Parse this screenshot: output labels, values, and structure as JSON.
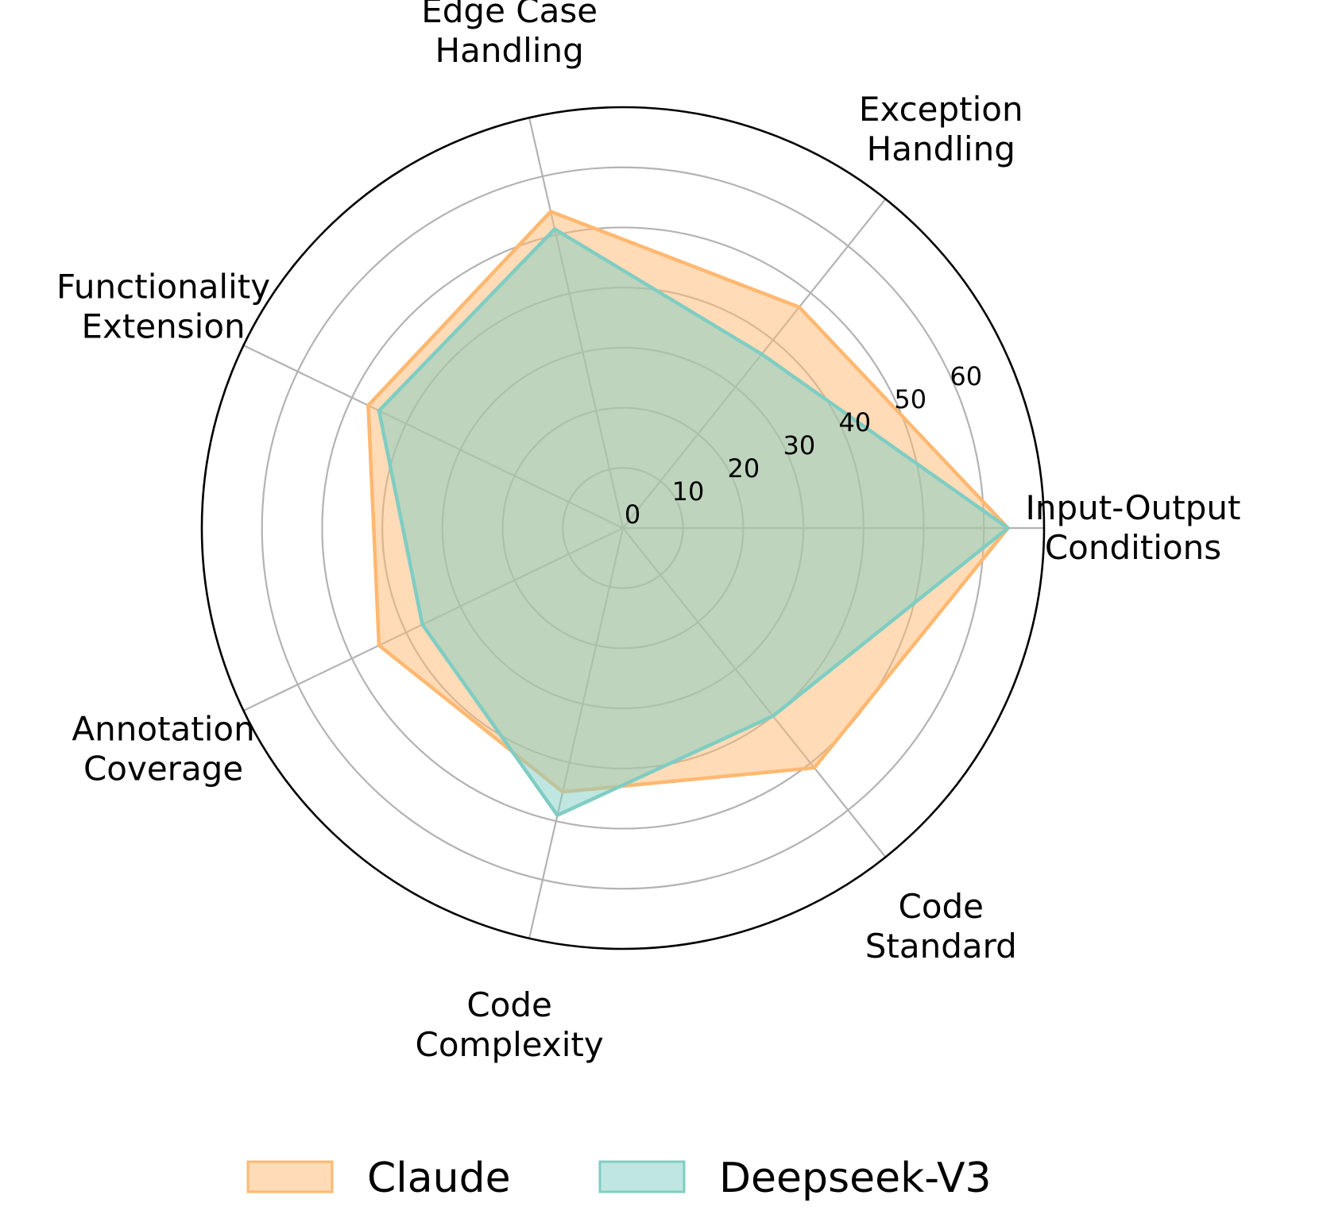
{
  "chart_data": {
    "type": "radar",
    "title": "",
    "axes": [
      "Input-Output Conditions",
      "Exception Handling",
      "Edge Case Handling",
      "Functionality Extension",
      "Annotation Coverage",
      "Code Complexity",
      "Code Standard"
    ],
    "axis_label_lines": [
      [
        "Input-Output",
        "Conditions"
      ],
      [
        "Exception",
        "Handling"
      ],
      [
        "Edge Case",
        "Handling"
      ],
      [
        "Functionality",
        "Extension"
      ],
      [
        "Annotation",
        "Coverage"
      ],
      [
        "Code",
        "Complexity"
      ],
      [
        "Code",
        "Standard"
      ]
    ],
    "radial_ticks": [
      0,
      10,
      20,
      30,
      40,
      50,
      60
    ],
    "rlim": [
      0,
      70
    ],
    "series": [
      {
        "name": "Claude",
        "values": [
          64,
          47,
          54,
          47,
          45,
          45,
          51
        ],
        "color": "#ffb870"
      },
      {
        "name": "Deepseek-V3",
        "values": [
          64,
          37,
          51,
          45,
          37,
          49,
          40
        ],
        "color": "#7fcdc3"
      }
    ],
    "legend": {
      "placement": "bottom",
      "entries": [
        "Claude",
        "Deepseek-V3"
      ]
    },
    "grid": true
  }
}
